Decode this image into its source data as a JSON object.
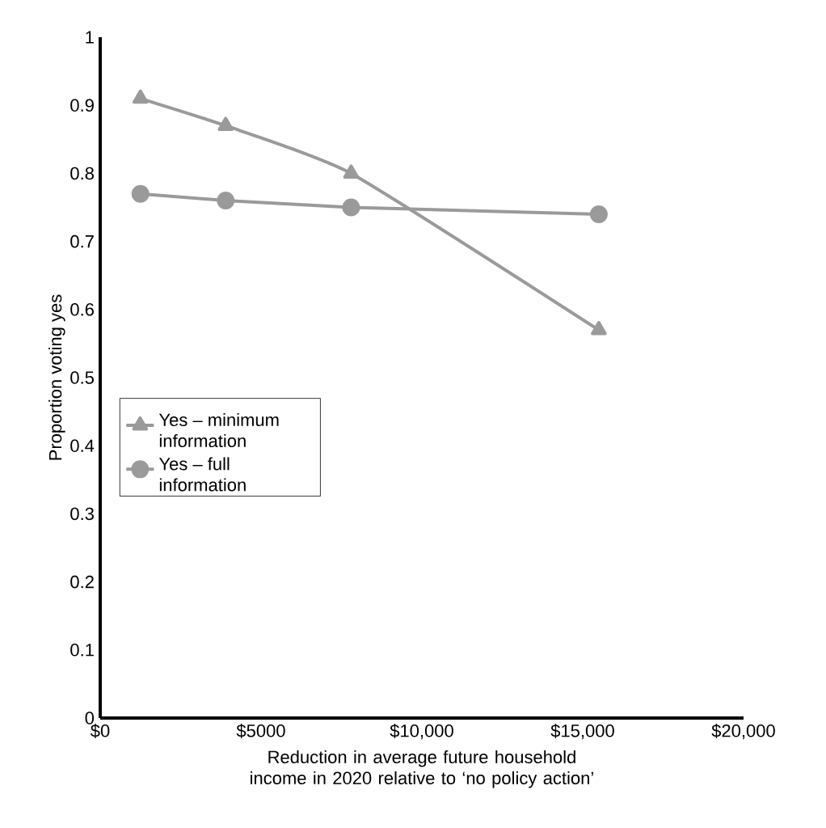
{
  "chart_data": {
    "type": "line",
    "xlabel": "Reduction in average future household income in 2020 relative to ‘no policy action’",
    "ylabel": "Proportion voting yes",
    "x": [
      1250,
      3900,
      7800,
      15500
    ],
    "series": [
      {
        "name": "Yes – minimum information",
        "color": "#9a9a9a",
        "marker": "triangle",
        "values": [
          0.91,
          0.87,
          0.8,
          0.57
        ]
      },
      {
        "name": "Yes – full information",
        "color": "#9a9a9a",
        "marker": "circle",
        "values": [
          0.77,
          0.76,
          0.75,
          0.74
        ]
      }
    ],
    "xlim": [
      0,
      20000
    ],
    "ylim": [
      0,
      1
    ],
    "xticks": [
      {
        "value": 0,
        "label": "$0"
      },
      {
        "value": 5000,
        "label": "$5000"
      },
      {
        "value": 10000,
        "label": "$10,000"
      },
      {
        "value": 15000,
        "label": "$15,000"
      },
      {
        "value": 20000,
        "label": "$20,000"
      }
    ],
    "yticks": [
      0,
      0.1,
      0.2,
      0.3,
      0.4,
      0.5,
      0.6,
      0.7,
      0.8,
      0.9,
      1
    ],
    "legend": "center left",
    "grid": false,
    "line_style": "solid"
  }
}
